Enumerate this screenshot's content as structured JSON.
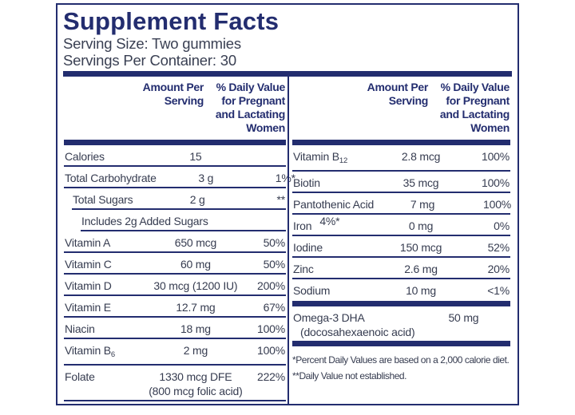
{
  "colors": {
    "navy": "#232d6f",
    "text": "#363c50",
    "background": "#ffffff"
  },
  "title": "Supplement Facts",
  "serving": {
    "size": "Serving Size: Two gummies",
    "per_container": "Servings Per Container: 30"
  },
  "column_header": {
    "amount": [
      "Amount Per",
      "Serving"
    ],
    "daily_value": [
      "% Daily Value",
      "for Pregnant",
      "and Lactating",
      "Women"
    ]
  },
  "left_rows": [
    {
      "name": "Calories",
      "amount": "15",
      "pct": "",
      "indent": 0
    },
    {
      "name": "Total Carbohydrate",
      "amount": "3 g",
      "pct": "1%*",
      "indent": 0
    },
    {
      "name": "Total Sugars",
      "amount": "2 g",
      "pct": "**",
      "indent": 1
    },
    {
      "name": "Includes 2g Added Sugars",
      "amount": "",
      "pct": "4%*",
      "indent": 2
    },
    {
      "name": "Vitamin A",
      "amount": "650 mcg",
      "pct": "50%",
      "indent": 0
    },
    {
      "name": "Vitamin C",
      "amount": "60 mg",
      "pct": "50%",
      "indent": 0
    },
    {
      "name": "Vitamin D",
      "amount": "30 mcg (1200 IU)",
      "pct": "200%",
      "indent": 0
    },
    {
      "name": "Vitamin E",
      "amount": "12.7 mg",
      "pct": "67%",
      "indent": 0
    },
    {
      "name": "Niacin",
      "amount": "18 mg",
      "pct": "100%",
      "indent": 0
    },
    {
      "name": "Vitamin B",
      "name_sub": "6",
      "amount": "2 mg",
      "pct": "100%",
      "indent": 0
    },
    {
      "name": "Folate",
      "amount": "1330 mcg DFE",
      "amount2": "(800 mcg folic acid)",
      "pct": "222%",
      "indent": 0
    }
  ],
  "right_rows": [
    {
      "name": "Vitamin B",
      "name_sub": "12",
      "amount": "2.8 mcg",
      "pct": "100%"
    },
    {
      "name": "Biotin",
      "amount": "35 mcg",
      "pct": "100%"
    },
    {
      "name": "Pantothenic Acid",
      "amount": "7 mg",
      "pct": "100%"
    },
    {
      "name": "Iron",
      "amount": "0 mg",
      "pct": "0%"
    },
    {
      "name": "Iodine",
      "amount": "150 mcg",
      "pct": "52%"
    },
    {
      "name": "Zinc",
      "amount": "2.6 mg",
      "pct": "20%"
    },
    {
      "name": "Sodium",
      "amount": "10 mg",
      "pct": "<1%",
      "no_border": true
    }
  ],
  "omega_row": {
    "name": "Omega-3 DHA",
    "name2": "(docosahexaenoic acid)",
    "amount": "50 mg",
    "pct": "**"
  },
  "footnotes": [
    "*Percent Daily Values are based on a 2,000 calorie diet.",
    "**Daily Value not established."
  ]
}
